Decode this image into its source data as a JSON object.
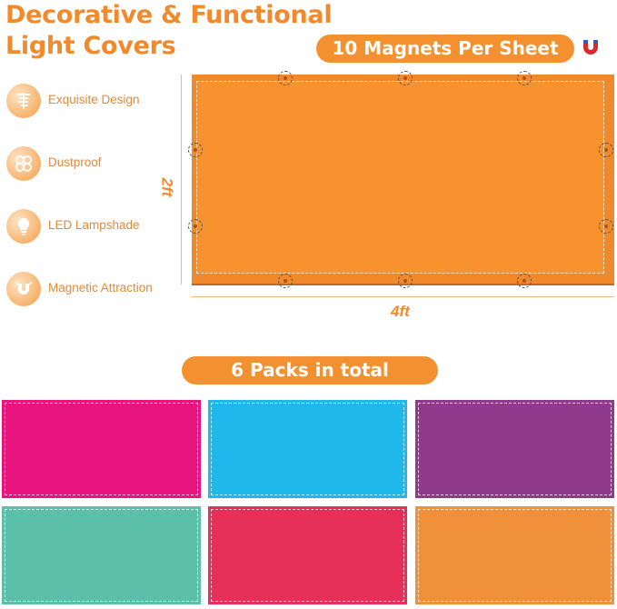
{
  "header": {
    "title_line1": "Decorative & Functional",
    "title_line2": "Light Covers"
  },
  "magnets_pill": "10 Magnets Per Sheet",
  "packs_pill": "6 Packs in total",
  "features": [
    {
      "label": "Exquisite Design",
      "icon": "design-icon"
    },
    {
      "label": "Dustproof",
      "icon": "dustproof-icon"
    },
    {
      "label": "LED Lampshade",
      "icon": "bulb-icon"
    },
    {
      "label": "Magnetic Attraction",
      "icon": "magnet-icon"
    }
  ],
  "dimensions": {
    "height": "2ft",
    "width": "4ft"
  },
  "colors": {
    "accent": "#f39130",
    "sheets": [
      "#e8157f",
      "#1fb8ea",
      "#8f3a8c",
      "#5bbfa9",
      "#e6305a",
      "#f0903a"
    ]
  }
}
